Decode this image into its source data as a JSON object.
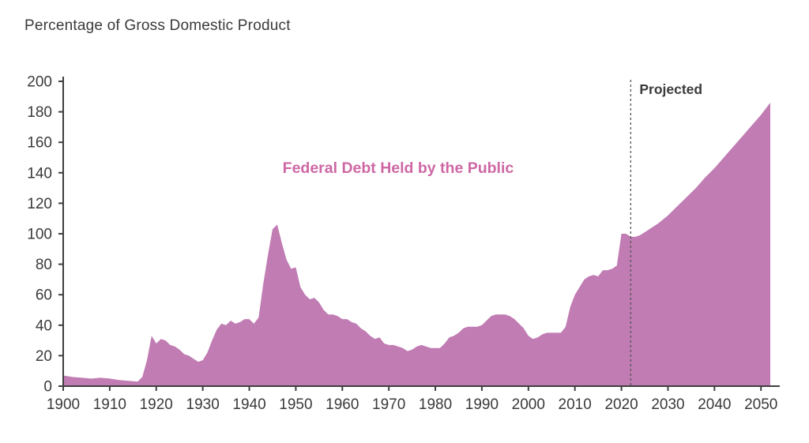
{
  "page": {
    "background": "#ffffff"
  },
  "chart_data": {
    "type": "area",
    "title": "Percentage of Gross Domestic Product",
    "series_label": "Federal Debt Held by the Public",
    "projected_label": "Projected",
    "projection_start_year": 2022,
    "xlabel": "",
    "ylabel": "Percentage of Gross Domestic Product",
    "xlim": [
      1900,
      2052
    ],
    "ylim": [
      0,
      200
    ],
    "x_ticks": [
      1900,
      1910,
      1920,
      1930,
      1940,
      1950,
      1960,
      1970,
      1980,
      1990,
      2000,
      2010,
      2020,
      2030,
      2040,
      2050
    ],
    "y_ticks": [
      0,
      20,
      40,
      60,
      80,
      100,
      120,
      140,
      160,
      180,
      200
    ],
    "grid": false,
    "legend_position": "none",
    "colors": {
      "area_fill": "#c07cb3",
      "series_label": "#ce67a4",
      "axis": "#3f3f3f",
      "tick_text": "#3a3a3a",
      "projected_line": "#555555",
      "title_text": "#3a3a3a"
    },
    "series": [
      {
        "name": "Federal Debt Held by the Public",
        "points": [
          [
            1900,
            7
          ],
          [
            1902,
            6
          ],
          [
            1904,
            5.5
          ],
          [
            1906,
            5
          ],
          [
            1908,
            5.5
          ],
          [
            1910,
            5
          ],
          [
            1912,
            4
          ],
          [
            1914,
            3.5
          ],
          [
            1916,
            3
          ],
          [
            1917,
            6
          ],
          [
            1918,
            17
          ],
          [
            1919,
            33
          ],
          [
            1920,
            28
          ],
          [
            1921,
            31
          ],
          [
            1922,
            30
          ],
          [
            1923,
            27
          ],
          [
            1924,
            26
          ],
          [
            1925,
            24
          ],
          [
            1926,
            21
          ],
          [
            1927,
            20
          ],
          [
            1928,
            18
          ],
          [
            1929,
            16
          ],
          [
            1930,
            17
          ],
          [
            1931,
            22
          ],
          [
            1932,
            30
          ],
          [
            1933,
            37
          ],
          [
            1934,
            41
          ],
          [
            1935,
            40
          ],
          [
            1936,
            43
          ],
          [
            1937,
            41
          ],
          [
            1938,
            42
          ],
          [
            1939,
            44
          ],
          [
            1940,
            44
          ],
          [
            1941,
            41
          ],
          [
            1942,
            45
          ],
          [
            1943,
            67
          ],
          [
            1944,
            86
          ],
          [
            1945,
            103
          ],
          [
            1946,
            106
          ],
          [
            1947,
            94
          ],
          [
            1948,
            83
          ],
          [
            1949,
            77
          ],
          [
            1950,
            78
          ],
          [
            1951,
            65
          ],
          [
            1952,
            60
          ],
          [
            1953,
            57
          ],
          [
            1954,
            58
          ],
          [
            1955,
            55
          ],
          [
            1956,
            50
          ],
          [
            1957,
            47
          ],
          [
            1958,
            47
          ],
          [
            1959,
            46
          ],
          [
            1960,
            44
          ],
          [
            1961,
            44
          ],
          [
            1962,
            42
          ],
          [
            1963,
            41
          ],
          [
            1964,
            38
          ],
          [
            1965,
            36
          ],
          [
            1966,
            33
          ],
          [
            1967,
            31
          ],
          [
            1968,
            32
          ],
          [
            1969,
            28
          ],
          [
            1970,
            27
          ],
          [
            1971,
            27
          ],
          [
            1972,
            26
          ],
          [
            1973,
            25
          ],
          [
            1974,
            23
          ],
          [
            1975,
            24
          ],
          [
            1976,
            26
          ],
          [
            1977,
            27
          ],
          [
            1978,
            26
          ],
          [
            1979,
            25
          ],
          [
            1980,
            25
          ],
          [
            1981,
            25
          ],
          [
            1982,
            28
          ],
          [
            1983,
            32
          ],
          [
            1984,
            33
          ],
          [
            1985,
            35
          ],
          [
            1986,
            38
          ],
          [
            1987,
            39
          ],
          [
            1988,
            39
          ],
          [
            1989,
            39
          ],
          [
            1990,
            40
          ],
          [
            1991,
            43
          ],
          [
            1992,
            46
          ],
          [
            1993,
            47
          ],
          [
            1994,
            47
          ],
          [
            1995,
            47
          ],
          [
            1996,
            46
          ],
          [
            1997,
            44
          ],
          [
            1998,
            41
          ],
          [
            1999,
            38
          ],
          [
            2000,
            33
          ],
          [
            2001,
            31
          ],
          [
            2002,
            32
          ],
          [
            2003,
            34
          ],
          [
            2004,
            35
          ],
          [
            2005,
            35
          ],
          [
            2006,
            35
          ],
          [
            2007,
            35
          ],
          [
            2008,
            39
          ],
          [
            2009,
            52
          ],
          [
            2010,
            60
          ],
          [
            2011,
            65
          ],
          [
            2012,
            70
          ],
          [
            2013,
            72
          ],
          [
            2014,
            73
          ],
          [
            2015,
            72
          ],
          [
            2016,
            76
          ],
          [
            2017,
            76
          ],
          [
            2018,
            77
          ],
          [
            2019,
            79
          ],
          [
            2020,
            100
          ],
          [
            2021,
            100
          ],
          [
            2022,
            98
          ],
          [
            2023,
            98
          ],
          [
            2024,
            99
          ],
          [
            2025,
            101
          ],
          [
            2026,
            103
          ],
          [
            2028,
            107
          ],
          [
            2030,
            112
          ],
          [
            2032,
            118
          ],
          [
            2034,
            124
          ],
          [
            2036,
            130
          ],
          [
            2038,
            137
          ],
          [
            2040,
            143
          ],
          [
            2042,
            150
          ],
          [
            2044,
            157
          ],
          [
            2046,
            164
          ],
          [
            2048,
            171
          ],
          [
            2050,
            178
          ],
          [
            2052,
            186
          ]
        ]
      }
    ]
  }
}
